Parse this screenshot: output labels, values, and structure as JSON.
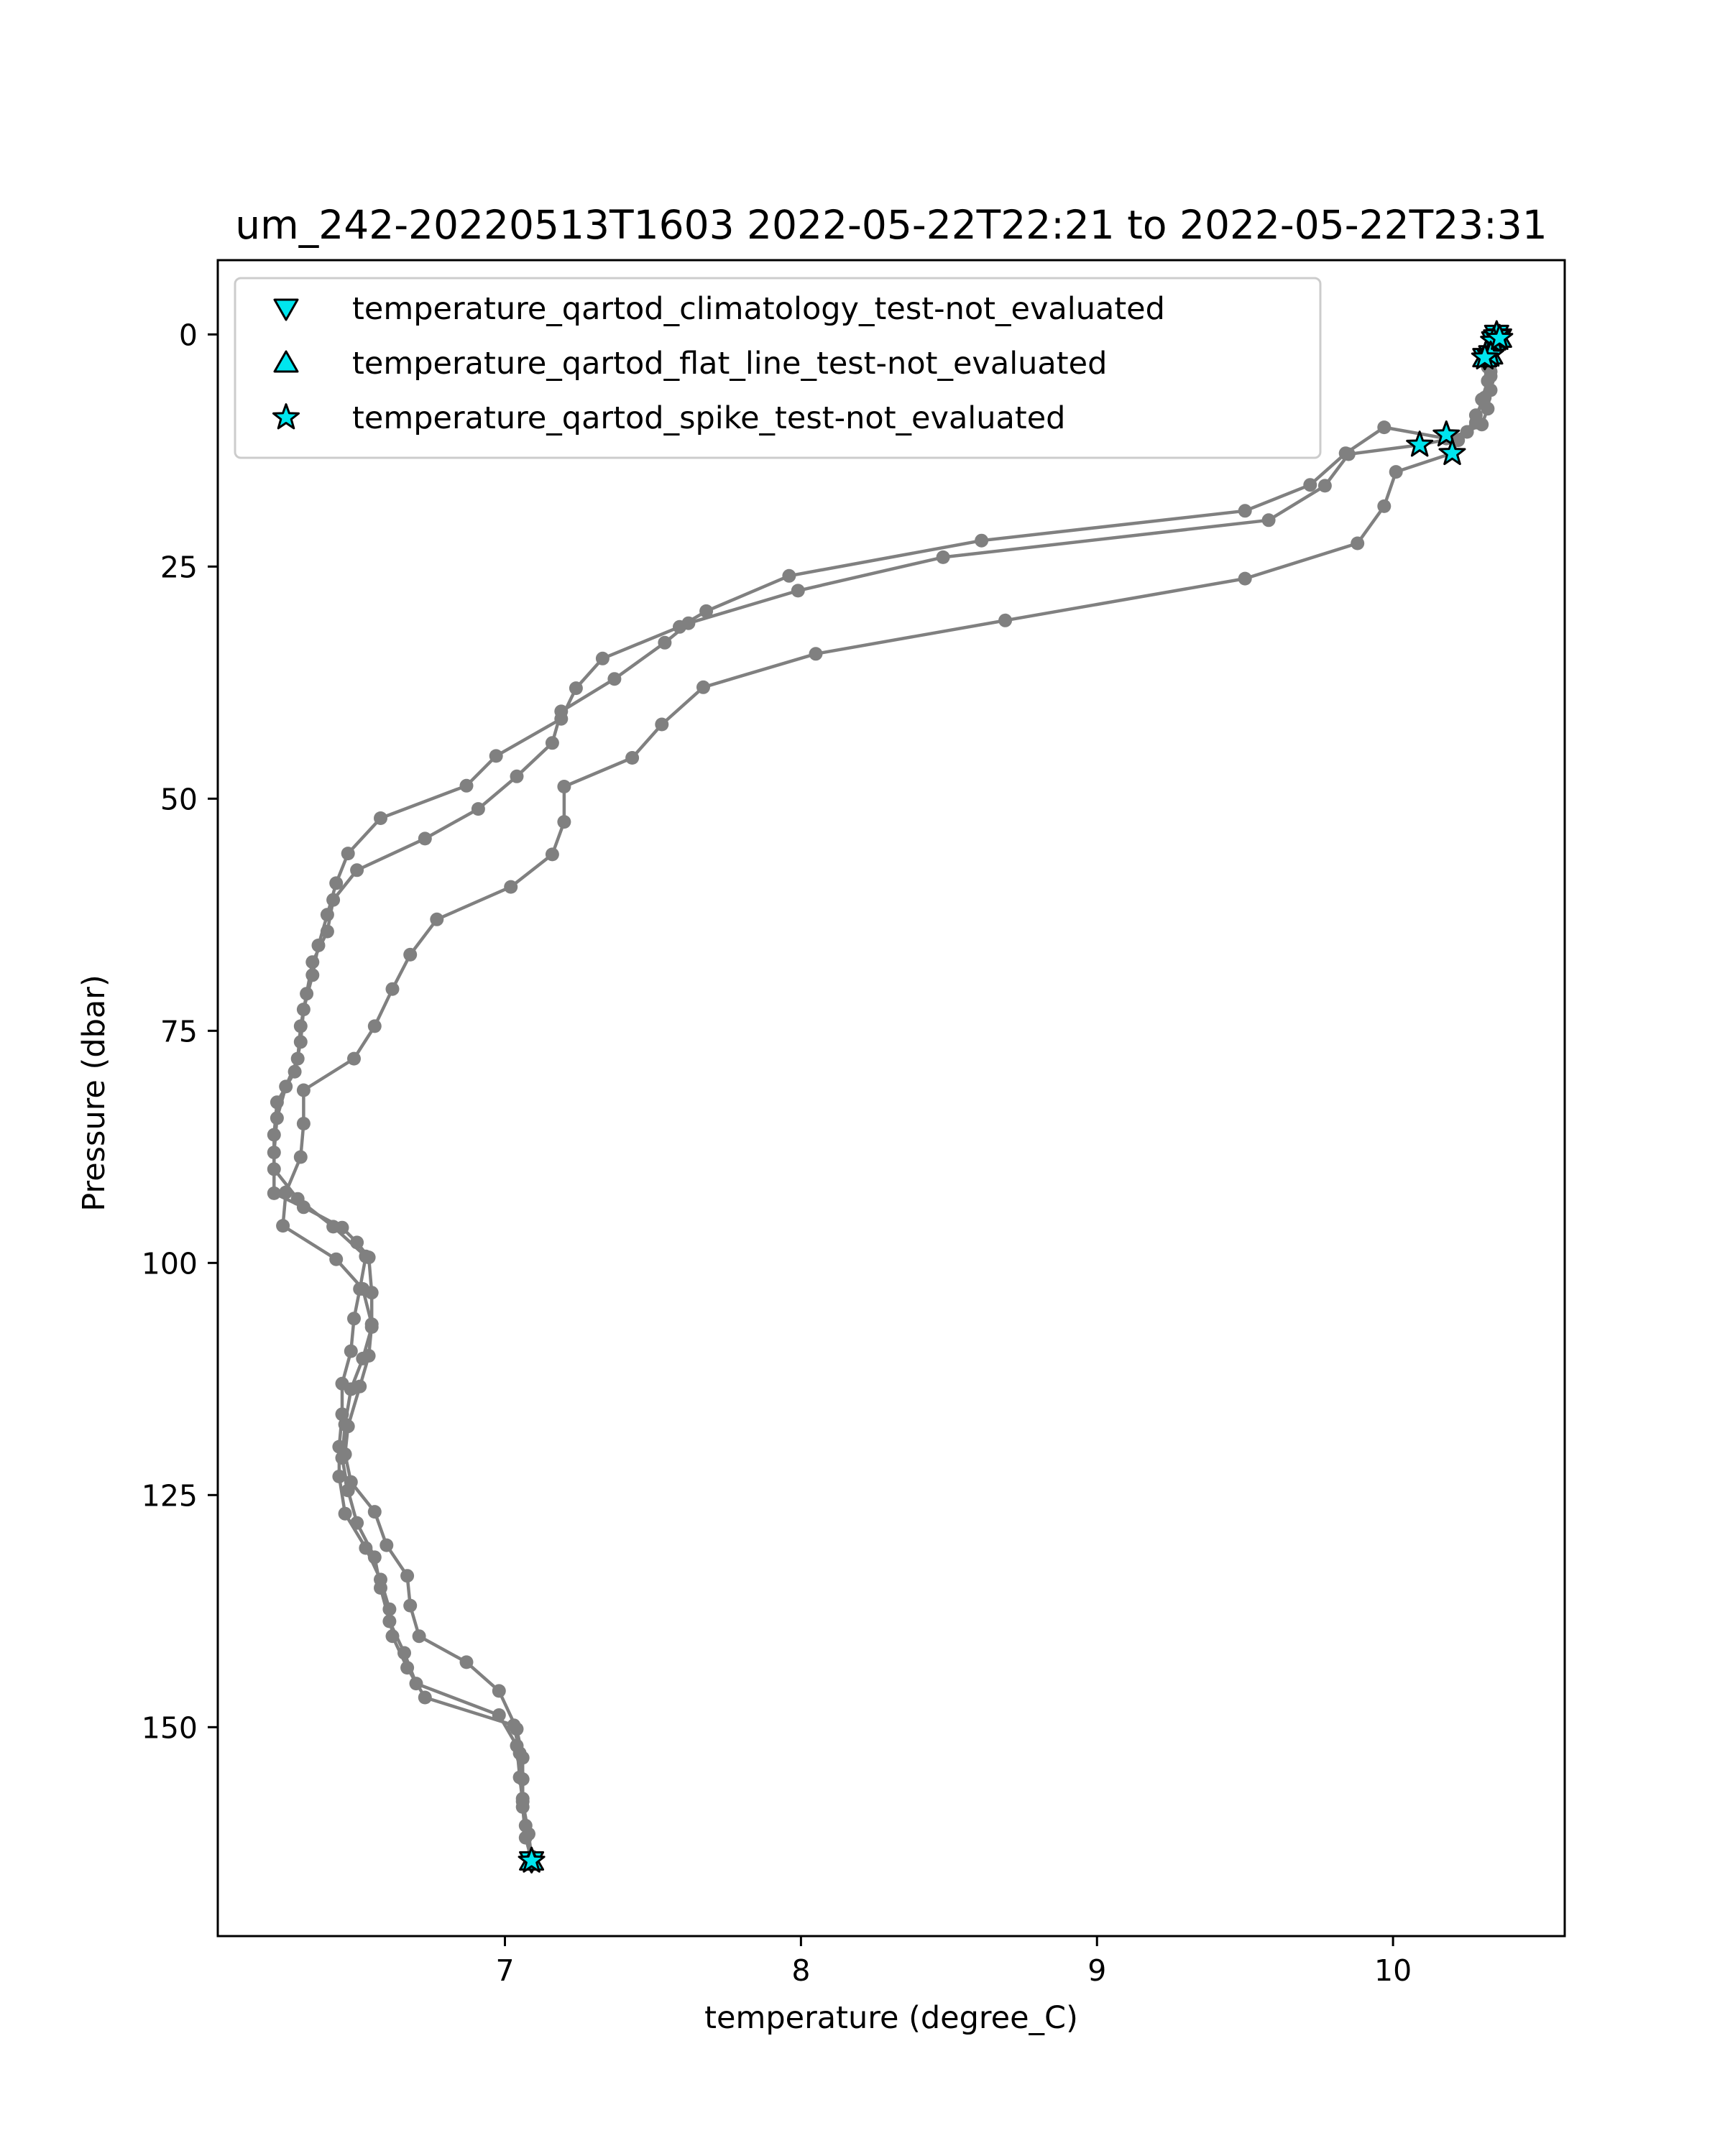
{
  "chart_data": {
    "type": "scatter",
    "title": "um_242-20220513T1603 2022-05-22T22:21 to 2022-05-22T23:31",
    "xlabel": "temperature (degree_C)",
    "ylabel": "Pressure (dbar)",
    "xlim": [
      6.03,
      10.58
    ],
    "ylim": [
      172.5,
      -8.0
    ],
    "y_inverted": true,
    "x_ticks": [
      7,
      8,
      9,
      10
    ],
    "y_ticks": [
      0,
      25,
      50,
      75,
      100,
      125,
      150
    ],
    "grid": false,
    "legend_position": "top-left",
    "colors": {
      "line": "#808080",
      "marker_fill": "#00e5ee",
      "marker_edge": "#000000"
    },
    "series": [
      {
        "line": true,
        "points": [
          [
            10.36,
            0.2
          ],
          [
            10.34,
            1.0
          ],
          [
            10.33,
            2.8
          ],
          [
            10.33,
            4.5
          ],
          [
            10.31,
            6.8
          ],
          [
            10.28,
            8.7
          ],
          [
            10.25,
            10.5
          ],
          [
            10.18,
            11.2
          ],
          [
            9.97,
            10.0
          ],
          [
            9.84,
            12.8
          ],
          [
            9.72,
            16.2
          ],
          [
            9.5,
            19.0
          ],
          [
            8.61,
            22.2
          ],
          [
            7.96,
            26.0
          ],
          [
            7.68,
            29.8
          ],
          [
            7.59,
            31.5
          ],
          [
            7.33,
            34.9
          ],
          [
            7.24,
            38.1
          ],
          [
            7.19,
            41.4
          ],
          [
            6.97,
            45.4
          ],
          [
            6.87,
            48.6
          ],
          [
            6.58,
            52.1
          ],
          [
            6.47,
            55.9
          ],
          [
            6.43,
            59.1
          ],
          [
            6.4,
            62.5
          ],
          [
            6.37,
            65.8
          ],
          [
            6.35,
            69.0
          ],
          [
            6.32,
            72.7
          ],
          [
            6.31,
            76.2
          ],
          [
            6.29,
            79.4
          ],
          [
            6.23,
            82.7
          ],
          [
            6.22,
            86.2
          ],
          [
            6.22,
            89.9
          ],
          [
            6.3,
            93.1
          ],
          [
            6.42,
            96.1
          ],
          [
            6.53,
            99.3
          ],
          [
            6.51,
            102.8
          ],
          [
            6.49,
            106.0
          ],
          [
            6.48,
            109.5
          ],
          [
            6.45,
            113.0
          ],
          [
            6.45,
            116.3
          ],
          [
            6.44,
            119.8
          ],
          [
            6.44,
            123.0
          ],
          [
            6.46,
            127.0
          ],
          [
            6.53,
            130.7
          ],
          [
            6.58,
            134.1
          ],
          [
            6.61,
            137.3
          ],
          [
            6.62,
            140.2
          ],
          [
            6.67,
            143.6
          ],
          [
            6.73,
            146.8
          ],
          [
            7.03,
            149.8
          ],
          [
            7.05,
            152.8
          ],
          [
            7.06,
            155.6
          ],
          [
            7.06,
            158.6
          ],
          [
            7.07,
            161.9
          ],
          [
            7.09,
            164.3
          ]
        ]
      },
      {
        "line": true,
        "points": [
          [
            10.34,
            0.7
          ],
          [
            10.32,
            2.0
          ],
          [
            10.33,
            4.0
          ],
          [
            10.33,
            6.0
          ],
          [
            10.32,
            8.0
          ],
          [
            10.3,
            9.7
          ],
          [
            10.2,
            11.2
          ],
          [
            10.09,
            11.9
          ],
          [
            9.85,
            12.9
          ],
          [
            9.77,
            16.3
          ],
          [
            9.58,
            20.0
          ],
          [
            8.48,
            24.0
          ],
          [
            7.99,
            27.6
          ],
          [
            7.62,
            31.1
          ],
          [
            7.54,
            33.2
          ],
          [
            7.37,
            37.1
          ],
          [
            7.19,
            40.6
          ],
          [
            7.16,
            44.0
          ],
          [
            7.04,
            47.6
          ],
          [
            6.91,
            51.1
          ],
          [
            6.73,
            54.3
          ],
          [
            6.5,
            57.7
          ],
          [
            6.42,
            60.9
          ],
          [
            6.4,
            64.3
          ],
          [
            6.35,
            67.6
          ],
          [
            6.33,
            71.0
          ],
          [
            6.31,
            74.5
          ],
          [
            6.3,
            78.0
          ],
          [
            6.26,
            81.0
          ],
          [
            6.23,
            84.4
          ],
          [
            6.22,
            88.1
          ],
          [
            6.22,
            92.5
          ],
          [
            6.32,
            94.0
          ],
          [
            6.45,
            96.2
          ],
          [
            6.5,
            97.8
          ],
          [
            6.54,
            99.4
          ],
          [
            6.55,
            103.2
          ],
          [
            6.55,
            106.9
          ],
          [
            6.52,
            110.3
          ],
          [
            6.48,
            113.6
          ],
          [
            6.46,
            117.4
          ],
          [
            6.45,
            121.0
          ],
          [
            6.47,
            124.5
          ],
          [
            6.5,
            128.0
          ],
          [
            6.56,
            131.7
          ],
          [
            6.58,
            135.0
          ],
          [
            6.61,
            138.6
          ],
          [
            6.66,
            142.0
          ],
          [
            6.7,
            145.3
          ],
          [
            6.98,
            148.7
          ],
          [
            7.04,
            152.0
          ],
          [
            7.05,
            155.4
          ],
          [
            7.06,
            158.0
          ],
          [
            7.08,
            161.5
          ],
          [
            7.09,
            164.0
          ]
        ]
      },
      {
        "line": true,
        "points": [
          [
            10.35,
            0.0
          ],
          [
            10.33,
            1.5
          ],
          [
            10.32,
            3.5
          ],
          [
            10.32,
            5.0
          ],
          [
            10.3,
            7.0
          ],
          [
            10.28,
            9.5
          ],
          [
            10.22,
            11.4
          ],
          [
            10.2,
            12.8
          ],
          [
            10.01,
            14.8
          ],
          [
            9.97,
            18.5
          ],
          [
            9.88,
            22.5
          ],
          [
            9.5,
            26.3
          ],
          [
            8.69,
            30.8
          ],
          [
            8.05,
            34.4
          ],
          [
            7.67,
            38.0
          ],
          [
            7.53,
            42.0
          ],
          [
            7.43,
            45.6
          ],
          [
            7.2,
            48.7
          ],
          [
            7.2,
            52.5
          ],
          [
            7.16,
            56.0
          ],
          [
            7.02,
            59.5
          ],
          [
            6.77,
            63.0
          ],
          [
            6.68,
            66.8
          ],
          [
            6.62,
            70.5
          ],
          [
            6.56,
            74.5
          ],
          [
            6.49,
            78.0
          ],
          [
            6.32,
            81.4
          ],
          [
            6.32,
            85.0
          ],
          [
            6.31,
            88.6
          ],
          [
            6.26,
            92.4
          ],
          [
            6.25,
            96.0
          ],
          [
            6.43,
            99.6
          ],
          [
            6.52,
            102.8
          ],
          [
            6.55,
            106.6
          ],
          [
            6.54,
            110.0
          ],
          [
            6.51,
            113.3
          ],
          [
            6.47,
            117.6
          ],
          [
            6.46,
            120.6
          ],
          [
            6.48,
            123.6
          ],
          [
            6.56,
            126.8
          ],
          [
            6.6,
            130.4
          ],
          [
            6.67,
            133.7
          ],
          [
            6.68,
            136.9
          ],
          [
            6.71,
            140.2
          ],
          [
            6.87,
            143.0
          ],
          [
            6.98,
            146.1
          ],
          [
            7.04,
            150.2
          ],
          [
            7.06,
            153.3
          ],
          [
            7.06,
            157.7
          ],
          [
            7.07,
            160.6
          ],
          [
            7.09,
            163.9
          ]
        ]
      },
      {
        "name": "temperature_qartod_climatology_test-not_evaluated",
        "marker": "triangle-down",
        "line": false,
        "points": [
          [
            10.35,
            0.0
          ],
          [
            10.34,
            0.7
          ],
          [
            10.33,
            2.2
          ],
          [
            10.31,
            2.5
          ],
          [
            10.36,
            0.4
          ],
          [
            7.09,
            164.4
          ]
        ]
      },
      {
        "name": "temperature_qartod_flat_line_test-not_evaluated",
        "marker": "triangle-up",
        "line": false,
        "points": [
          [
            10.35,
            0.0
          ],
          [
            10.34,
            0.7
          ],
          [
            10.33,
            2.2
          ],
          [
            10.31,
            2.5
          ],
          [
            10.36,
            0.4
          ],
          [
            7.09,
            164.4
          ]
        ]
      },
      {
        "name": "temperature_qartod_spike_test-not_evaluated",
        "marker": "star",
        "line": false,
        "points": [
          [
            10.35,
            0.0
          ],
          [
            10.34,
            0.7
          ],
          [
            10.33,
            2.2
          ],
          [
            10.31,
            2.5
          ],
          [
            10.36,
            0.4
          ],
          [
            10.09,
            11.9
          ],
          [
            10.18,
            10.8
          ],
          [
            10.2,
            12.8
          ],
          [
            7.09,
            164.4
          ]
        ]
      }
    ]
  }
}
